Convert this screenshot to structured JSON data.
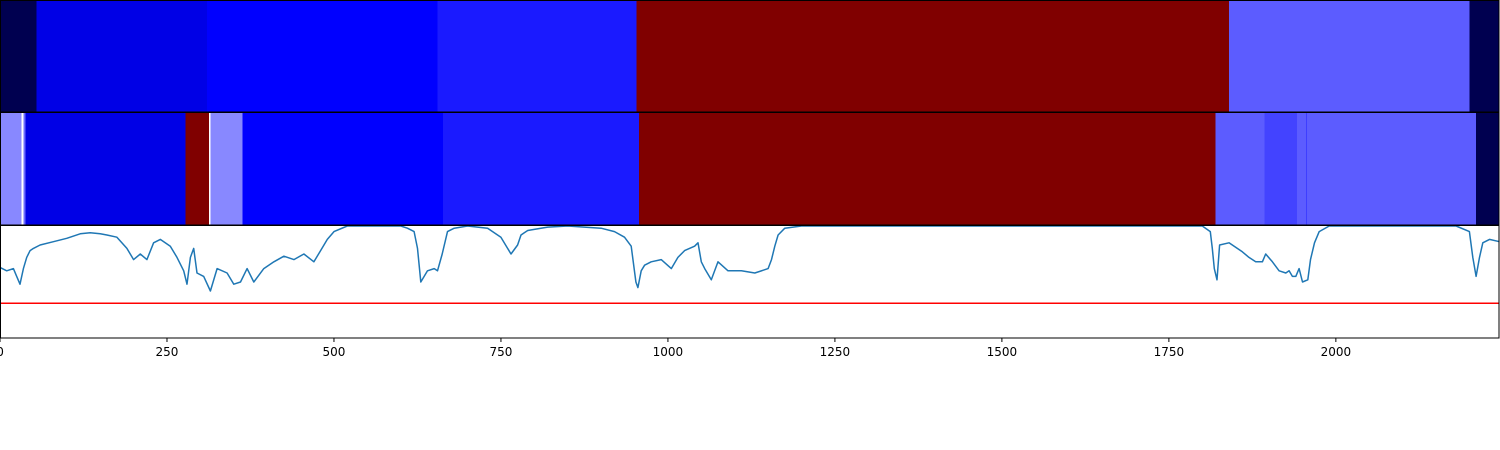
{
  "chart_data": [
    {
      "type": "heatmap",
      "xlim": [
        0,
        2245
      ],
      "segments": [
        {
          "start": 0,
          "end": 55,
          "color": "#000050"
        },
        {
          "start": 55,
          "end": 310,
          "color": "#0000e6"
        },
        {
          "start": 310,
          "end": 655,
          "color": "#0000ff"
        },
        {
          "start": 655,
          "end": 953,
          "color": "#1a1aff"
        },
        {
          "start": 953,
          "end": 1840,
          "color": "#800000"
        },
        {
          "start": 1840,
          "end": 2200,
          "color": "#5c5cff"
        },
        {
          "start": 2200,
          "end": 2245,
          "color": "#000050"
        }
      ]
    },
    {
      "type": "heatmap",
      "xlim": [
        0,
        2245
      ],
      "segments": [
        {
          "start": 0,
          "end": 32,
          "color": "#8888ff"
        },
        {
          "start": 32,
          "end": 35,
          "color": "#ffffff"
        },
        {
          "start": 35,
          "end": 38,
          "color": "#6b6bff"
        },
        {
          "start": 38,
          "end": 278,
          "color": "#0000e6"
        },
        {
          "start": 278,
          "end": 313,
          "color": "#800000"
        },
        {
          "start": 313,
          "end": 315,
          "color": "#ffffff"
        },
        {
          "start": 315,
          "end": 363,
          "color": "#8888ff"
        },
        {
          "start": 363,
          "end": 663,
          "color": "#0000ff"
        },
        {
          "start": 663,
          "end": 957,
          "color": "#1a1aff"
        },
        {
          "start": 957,
          "end": 1820,
          "color": "#800000"
        },
        {
          "start": 1820,
          "end": 1893,
          "color": "#5c5cff"
        },
        {
          "start": 1893,
          "end": 1942,
          "color": "#4343ff"
        },
        {
          "start": 1942,
          "end": 1955,
          "color": "#5c5cff"
        },
        {
          "start": 1955,
          "end": 1957,
          "color": "#3e3eff"
        },
        {
          "start": 1957,
          "end": 2210,
          "color": "#5c5cff"
        },
        {
          "start": 2210,
          "end": 2245,
          "color": "#000050"
        }
      ]
    },
    {
      "type": "line",
      "xlim": [
        0,
        2245
      ],
      "ylim": [
        0,
        1
      ],
      "xticks": [
        0,
        250,
        500,
        750,
        1000,
        1250,
        1500,
        1750,
        2000
      ],
      "xtick_labels": [
        "0",
        "250",
        "500",
        "750",
        "1000",
        "1250",
        "1500",
        "1750",
        "2000"
      ],
      "threshold": {
        "y": 0.31,
        "color": "#ff0000"
      },
      "series": [
        {
          "color": "#1f77b4",
          "x": [
            0,
            10,
            20,
            25,
            30,
            35,
            40,
            45,
            50,
            60,
            80,
            100,
            120,
            135,
            150,
            160,
            175,
            190,
            200,
            210,
            220,
            230,
            240,
            255,
            265,
            275,
            280,
            285,
            290,
            295,
            305,
            315,
            325,
            340,
            350,
            360,
            370,
            380,
            395,
            410,
            425,
            440,
            455,
            470,
            480,
            490,
            500,
            520,
            550,
            600,
            610,
            620,
            625,
            630,
            640,
            650,
            655,
            662,
            670,
            680,
            700,
            730,
            750,
            765,
            775,
            780,
            785,
            790,
            800,
            820,
            850,
            900,
            920,
            935,
            945,
            952,
            955,
            960,
            965,
            975,
            990,
            1005,
            1015,
            1025,
            1040,
            1045,
            1050,
            1055,
            1065,
            1075,
            1090,
            1110,
            1130,
            1150,
            1155,
            1160,
            1165,
            1175,
            1200,
            1300,
            1500,
            1700,
            1800,
            1812,
            1815,
            1818,
            1822,
            1826,
            1840,
            1860,
            1870,
            1880,
            1890,
            1895,
            1905,
            1915,
            1925,
            1930,
            1935,
            1940,
            1945,
            1950,
            1958,
            1962,
            1968,
            1975,
            1990,
            2020,
            2100,
            2180,
            2200,
            2205,
            2210,
            2215,
            2220,
            2230,
            2245
          ],
          "y": [
            0.63,
            0.6,
            0.62,
            0.55,
            0.48,
            0.62,
            0.72,
            0.78,
            0.8,
            0.83,
            0.86,
            0.89,
            0.93,
            0.94,
            0.93,
            0.92,
            0.9,
            0.8,
            0.7,
            0.75,
            0.7,
            0.85,
            0.88,
            0.82,
            0.72,
            0.6,
            0.48,
            0.72,
            0.8,
            0.58,
            0.55,
            0.42,
            0.62,
            0.58,
            0.48,
            0.5,
            0.62,
            0.5,
            0.62,
            0.68,
            0.73,
            0.7,
            0.75,
            0.68,
            0.78,
            0.88,
            0.95,
            1.0,
            1.0,
            1.0,
            0.98,
            0.95,
            0.8,
            0.5,
            0.6,
            0.62,
            0.6,
            0.75,
            0.95,
            0.98,
            1.0,
            0.98,
            0.9,
            0.75,
            0.83,
            0.92,
            0.94,
            0.96,
            0.97,
            0.99,
            1.0,
            0.98,
            0.95,
            0.9,
            0.82,
            0.5,
            0.45,
            0.6,
            0.65,
            0.68,
            0.7,
            0.62,
            0.72,
            0.78,
            0.82,
            0.85,
            0.68,
            0.62,
            0.52,
            0.68,
            0.6,
            0.6,
            0.58,
            0.62,
            0.7,
            0.82,
            0.92,
            0.98,
            1.0,
            1.0,
            1.0,
            1.0,
            1.0,
            0.95,
            0.8,
            0.62,
            0.52,
            0.83,
            0.85,
            0.77,
            0.72,
            0.68,
            0.68,
            0.75,
            0.68,
            0.6,
            0.58,
            0.6,
            0.55,
            0.55,
            0.62,
            0.5,
            0.52,
            0.7,
            0.85,
            0.95,
            1.0,
            1.0,
            1.0,
            1.0,
            0.95,
            0.72,
            0.55,
            0.72,
            0.85,
            0.88,
            0.86
          ]
        }
      ]
    }
  ]
}
